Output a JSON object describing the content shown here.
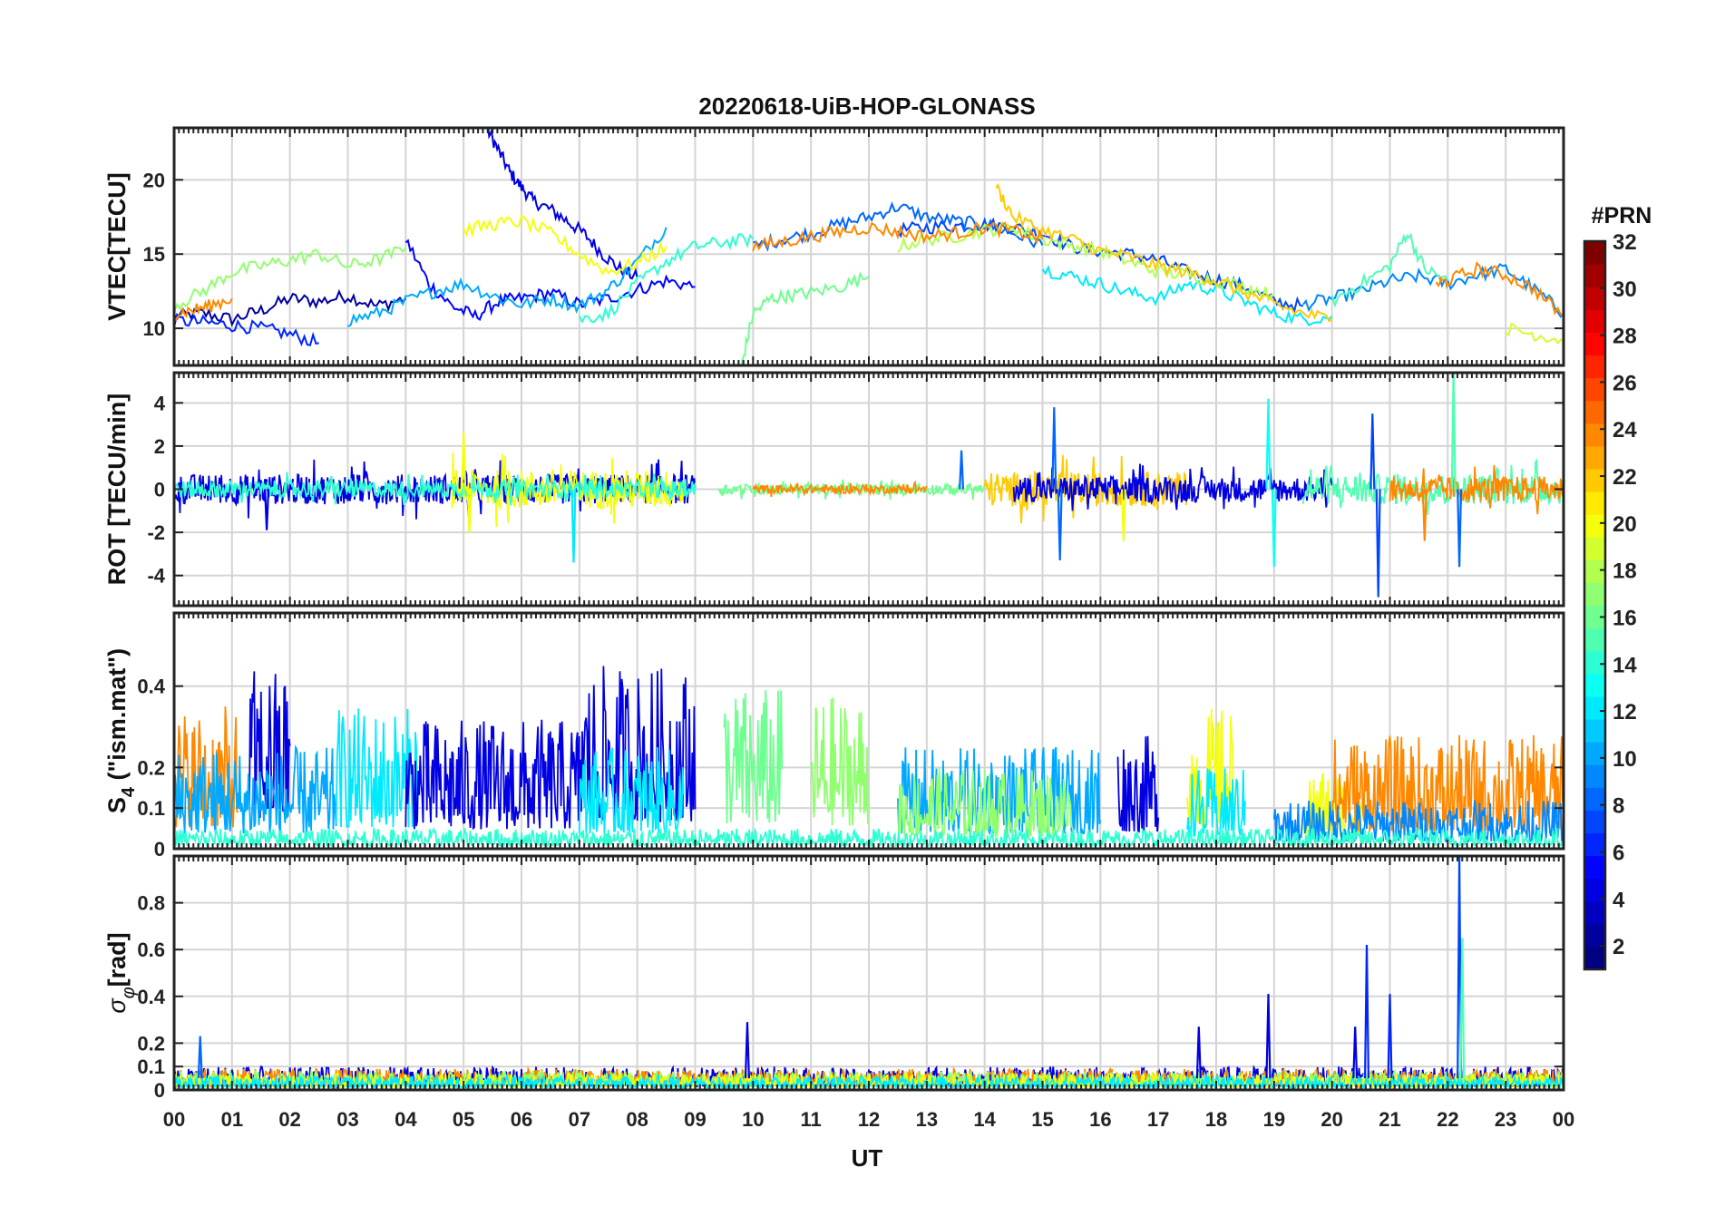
{
  "figure": {
    "title": "20220618-UiB-HOP-GLONASS"
  },
  "chart_data": [
    {
      "type": "line",
      "panel": "vtec",
      "ylabel": "VTEC[TECU]",
      "ylim": [
        7.5,
        23.5
      ],
      "yticks": [
        10,
        15,
        20
      ],
      "xlim": [
        0,
        24
      ],
      "grid": true,
      "series": [
        {
          "prn": 2,
          "x": [
            0,
            0.5,
            1.0,
            1.5,
            2.0,
            2.5,
            3.0,
            3.5,
            4.0
          ],
          "y": [
            10.8,
            11.0,
            10.6,
            11.2,
            12.0,
            11.8,
            12.2,
            11.5,
            12.0
          ]
        },
        {
          "prn": 4,
          "x": [
            5.4,
            5.6,
            5.8,
            6.0,
            6.2,
            6.5,
            6.8,
            7.1,
            7.4,
            7.7,
            8.0
          ],
          "y": [
            23.5,
            22.0,
            20.5,
            19.5,
            18.6,
            18.0,
            17.2,
            16.3,
            15.0,
            14.0,
            13.4
          ]
        },
        {
          "prn": 5,
          "x": [
            4.0,
            4.4,
            4.8,
            5.2,
            5.6,
            6.0,
            6.5,
            7.0,
            7.5,
            8.0,
            8.5,
            9.0
          ],
          "y": [
            16.0,
            13.0,
            11.5,
            10.8,
            11.8,
            12.0,
            12.4,
            11.6,
            12.0,
            12.6,
            13.2,
            12.8
          ]
        },
        {
          "prn": 6,
          "x": [
            0,
            0.5,
            1.0,
            1.5,
            2.0,
            2.5
          ],
          "y": [
            10.5,
            10.4,
            10.2,
            10.0,
            9.6,
            9.0
          ]
        },
        {
          "prn": 7,
          "x": [
            12.5,
            13.0,
            13.5,
            14.0,
            14.5,
            15.0,
            15.5,
            16.0,
            16.5,
            17.0,
            17.5,
            18.0,
            18.5,
            19.0,
            19.5
          ],
          "y": [
            16.6,
            16.8,
            16.9,
            17.0,
            16.8,
            16.4,
            15.5,
            15.2,
            15.0,
            14.6,
            13.8,
            13.3,
            12.8,
            11.8,
            11.5
          ]
        },
        {
          "prn": 8,
          "x": [
            10.0,
            10.5,
            11.0,
            11.5,
            12.0,
            12.5,
            13.0,
            13.5,
            14.0,
            14.5,
            15.0
          ],
          "y": [
            15.5,
            16.0,
            16.4,
            17.0,
            17.5,
            18.2,
            17.5,
            17.2,
            17.0,
            16.4,
            15.6
          ]
        },
        {
          "prn": 9,
          "x": [
            19.5,
            20.0,
            20.5,
            21.0,
            21.5,
            22.0,
            22.5,
            23.0,
            23.5,
            24.0
          ],
          "y": [
            11.6,
            12.0,
            12.5,
            13.2,
            13.5,
            13.0,
            13.6,
            14.0,
            12.6,
            11.0
          ]
        },
        {
          "prn": 10,
          "x": [
            3.0,
            3.5,
            4.0,
            4.5,
            5.0,
            5.5,
            6.0,
            6.5,
            7.0,
            7.5,
            8.0,
            8.5
          ],
          "y": [
            10.5,
            11.0,
            11.8,
            12.5,
            13.0,
            12.2,
            11.6,
            12.0,
            11.5,
            12.6,
            14.5,
            16.8
          ]
        },
        {
          "prn": 12,
          "x": [
            15.0,
            15.5,
            16.0,
            16.5,
            17.0,
            17.5,
            18.0,
            18.5,
            19.0,
            19.5,
            20.0
          ],
          "y": [
            14.0,
            13.5,
            13.0,
            12.4,
            12.0,
            13.0,
            12.6,
            11.8,
            11.0,
            10.6,
            10.8
          ]
        },
        {
          "prn": 14,
          "x": [
            7.0,
            7.5,
            8.0,
            8.5,
            9.0,
            9.5,
            10.0
          ],
          "y": [
            10.6,
            11.0,
            13.0,
            14.5,
            15.5,
            15.8,
            16.0
          ]
        },
        {
          "prn": 15,
          "x": [
            20.0,
            20.5,
            21.0,
            21.3,
            21.6,
            22.0
          ],
          "y": [
            11.8,
            13.0,
            14.2,
            16.5,
            14.0,
            13.2
          ]
        },
        {
          "prn": 16,
          "x": [
            9.8,
            10.0,
            10.3,
            10.6,
            11.0,
            11.5,
            12.0
          ],
          "y": [
            7.5,
            11.0,
            12.0,
            12.2,
            12.4,
            12.8,
            13.5
          ]
        },
        {
          "prn": 17,
          "x": [
            0,
            0.5,
            1.0,
            1.5,
            2.0,
            2.5,
            3.0,
            3.5,
            4.0
          ],
          "y": [
            11.5,
            12.5,
            13.8,
            14.2,
            14.6,
            15.0,
            14.2,
            14.6,
            15.4
          ]
        },
        {
          "prn": 18,
          "x": [
            12.5,
            13.0,
            13.5,
            14.0,
            14.5,
            15.0,
            15.5,
            16.0,
            16.5,
            17.0,
            17.5,
            18.0,
            18.5,
            19.0
          ],
          "y": [
            15.5,
            16.0,
            16.2,
            16.6,
            16.8,
            16.0,
            15.6,
            15.2,
            14.5,
            13.8,
            13.6,
            13.2,
            12.8,
            12.2
          ]
        },
        {
          "prn": 19,
          "x": [
            23.0,
            23.5,
            24.0
          ],
          "y": [
            10.0,
            9.6,
            9.2
          ]
        },
        {
          "prn": 20,
          "x": [
            5.0,
            5.5,
            6.0,
            6.5,
            7.0,
            7.5,
            8.0,
            8.5
          ],
          "y": [
            16.6,
            17.0,
            17.2,
            16.4,
            15.0,
            13.8,
            14.4,
            15.5
          ]
        },
        {
          "prn": 22,
          "x": [
            14.2,
            14.5,
            15.0,
            15.5,
            16.0,
            16.5,
            17.0,
            17.5,
            18.0,
            18.5,
            19.0,
            19.5,
            20.0
          ],
          "y": [
            19.5,
            17.5,
            16.6,
            16.0,
            15.2,
            14.8,
            14.2,
            13.8,
            13.2,
            12.4,
            11.6,
            11.0,
            10.6
          ]
        },
        {
          "prn": 24,
          "x": [
            0,
            0.3,
            0.6,
            1.0
          ],
          "y": [
            11.0,
            11.2,
            11.5,
            12.0
          ]
        },
        {
          "prn": 24,
          "x": [
            10.0,
            10.5,
            11.0,
            11.5,
            12.0,
            12.5,
            13.0,
            13.5,
            14.0,
            14.5,
            15.0
          ],
          "y": [
            15.5,
            15.8,
            16.2,
            16.5,
            16.8,
            16.5,
            16.2,
            16.4,
            16.8,
            16.6,
            16.0
          ]
        },
        {
          "prn": 24,
          "x": [
            21.8,
            22.0,
            22.5,
            23.0,
            23.5,
            24.0
          ],
          "y": [
            13.0,
            13.2,
            14.0,
            13.6,
            12.6,
            10.8
          ]
        }
      ]
    },
    {
      "type": "line",
      "panel": "rot",
      "ylabel": "ROT [TECU/min]",
      "ylim": [
        -5.4,
        5.4
      ],
      "yticks": [
        -4,
        -2,
        0,
        2,
        4
      ],
      "xlim": [
        0,
        24
      ],
      "grid": true,
      "noise_windows": [
        {
          "prn": 4,
          "from": 0.0,
          "to": 9.0,
          "amplitude": 0.7
        },
        {
          "prn": 20,
          "from": 4.8,
          "to": 8.8,
          "amplitude": 0.9
        },
        {
          "prn": 14,
          "from": 0.0,
          "to": 9.0,
          "amplitude": 0.4
        },
        {
          "prn": 16,
          "from": 9.4,
          "to": 14.0,
          "amplitude": 0.25
        },
        {
          "prn": 24,
          "from": 10.0,
          "to": 13.0,
          "amplitude": 0.2
        },
        {
          "prn": 22,
          "from": 14.0,
          "to": 17.5,
          "amplitude": 0.8
        },
        {
          "prn": 4,
          "from": 14.5,
          "to": 20.0,
          "amplitude": 0.6
        },
        {
          "prn": 15,
          "from": 19.5,
          "to": 24.0,
          "amplitude": 0.7
        },
        {
          "prn": 24,
          "from": 21.0,
          "to": 24.0,
          "amplitude": 0.6
        }
      ],
      "spikes": [
        {
          "prn": 4,
          "x": 1.6,
          "y": -1.9
        },
        {
          "prn": 20,
          "x": 5.0,
          "y": 2.6
        },
        {
          "prn": 20,
          "x": 5.1,
          "y": -2.0
        },
        {
          "prn": 12,
          "x": 6.9,
          "y": -3.4
        },
        {
          "prn": 8,
          "x": 13.6,
          "y": 1.8
        },
        {
          "prn": 8,
          "x": 15.2,
          "y": 3.8
        },
        {
          "prn": 8,
          "x": 15.3,
          "y": -3.3
        },
        {
          "prn": 20,
          "x": 16.4,
          "y": -2.4
        },
        {
          "prn": 13,
          "x": 18.9,
          "y": 4.2
        },
        {
          "prn": 13,
          "x": 19.0,
          "y": -3.6
        },
        {
          "prn": 7,
          "x": 20.8,
          "y": -5.0
        },
        {
          "prn": 7,
          "x": 20.7,
          "y": 3.5
        },
        {
          "prn": 15,
          "x": 22.1,
          "y": 5.4
        },
        {
          "prn": 8,
          "x": 22.2,
          "y": -3.6
        },
        {
          "prn": 24,
          "x": 21.6,
          "y": -2.4
        }
      ]
    },
    {
      "type": "line",
      "panel": "s4",
      "ylabel": "S4 (\"ism.mat\")",
      "ylabel_main": "S",
      "ylabel_sub": "4",
      "ylabel_rest": " (\"ism.mat\")",
      "ylim": [
        0,
        0.58
      ],
      "yticks": [
        0,
        0.1,
        0.2,
        0.4
      ],
      "xlim": [
        0,
        24
      ],
      "grid": true,
      "noise_windows": [
        {
          "prn": 24,
          "from": 0.0,
          "to": 1.1,
          "amplitude": 0.35
        },
        {
          "prn": 4,
          "from": 1.3,
          "to": 2.0,
          "amplitude": 0.45
        },
        {
          "prn": 10,
          "from": 0.0,
          "to": 2.8,
          "amplitude": 0.25
        },
        {
          "prn": 12,
          "from": 2.8,
          "to": 4.2,
          "amplitude": 0.35
        },
        {
          "prn": 4,
          "from": 4.0,
          "to": 7.0,
          "amplitude": 0.32
        },
        {
          "prn": 4,
          "from": 7.0,
          "to": 9.0,
          "amplitude": 0.45
        },
        {
          "prn": 12,
          "from": 7.0,
          "to": 8.8,
          "amplitude": 0.25
        },
        {
          "prn": 16,
          "from": 9.5,
          "to": 10.5,
          "amplitude": 0.4
        },
        {
          "prn": 17,
          "from": 11.0,
          "to": 12.0,
          "amplitude": 0.38
        },
        {
          "prn": 10,
          "from": 12.5,
          "to": 16.0,
          "amplitude": 0.25
        },
        {
          "prn": 17,
          "from": 12.5,
          "to": 15.5,
          "amplitude": 0.2
        },
        {
          "prn": 4,
          "from": 16.3,
          "to": 17.0,
          "amplitude": 0.28
        },
        {
          "prn": 20,
          "from": 17.5,
          "to": 18.3,
          "amplitude": 0.35
        },
        {
          "prn": 12,
          "from": 17.5,
          "to": 18.5,
          "amplitude": 0.2
        },
        {
          "prn": 20,
          "from": 19.5,
          "to": 20.5,
          "amplitude": 0.2
        },
        {
          "prn": 24,
          "from": 20.0,
          "to": 24.0,
          "amplitude": 0.28
        },
        {
          "prn": 9,
          "from": 19.0,
          "to": 24.0,
          "amplitude": 0.12
        },
        {
          "prn": 14,
          "from": 0.0,
          "to": 24.0,
          "amplitude": 0.05
        }
      ]
    },
    {
      "type": "line",
      "panel": "sigma",
      "ylabel": "σφ[rad]",
      "ylabel_main": "σ",
      "ylabel_sub": "φ",
      "ylabel_rest": "[rad]",
      "ylim": [
        0,
        1.0
      ],
      "yticks": [
        0,
        0.1,
        0.2,
        0.4,
        0.6,
        0.8
      ],
      "xlim": [
        0,
        24
      ],
      "grid": true,
      "noise_windows": [
        {
          "prn": 4,
          "from": 0.0,
          "to": 24.0,
          "amplitude": 0.1
        },
        {
          "prn": 24,
          "from": 0.0,
          "to": 24.0,
          "amplitude": 0.09
        },
        {
          "prn": 17,
          "from": 0.0,
          "to": 24.0,
          "amplitude": 0.08
        },
        {
          "prn": 20,
          "from": 0.0,
          "to": 24.0,
          "amplitude": 0.07
        },
        {
          "prn": 12,
          "from": 0.0,
          "to": 24.0,
          "amplitude": 0.06
        }
      ],
      "spikes": [
        {
          "prn": 8,
          "x": 0.45,
          "y": 0.23
        },
        {
          "prn": 4,
          "x": 9.9,
          "y": 0.29
        },
        {
          "prn": 4,
          "x": 17.7,
          "y": 0.27
        },
        {
          "prn": 4,
          "x": 18.9,
          "y": 0.41
        },
        {
          "prn": 4,
          "x": 20.4,
          "y": 0.27
        },
        {
          "prn": 6,
          "x": 20.6,
          "y": 0.62
        },
        {
          "prn": 6,
          "x": 21.0,
          "y": 0.41
        },
        {
          "prn": 7,
          "x": 22.2,
          "y": 1.0
        },
        {
          "prn": 15,
          "x": 22.25,
          "y": 0.65
        }
      ]
    }
  ],
  "xaxis": {
    "label": "UT",
    "ticks": [
      "00",
      "01",
      "02",
      "03",
      "04",
      "05",
      "06",
      "07",
      "08",
      "09",
      "10",
      "11",
      "12",
      "13",
      "14",
      "15",
      "16",
      "17",
      "18",
      "19",
      "20",
      "21",
      "22",
      "23",
      "00"
    ]
  },
  "colorbar": {
    "title": "#PRN",
    "colormap": "jet",
    "range": [
      1,
      32
    ],
    "ticks": [
      "2",
      "4",
      "6",
      "8",
      "10",
      "12",
      "14",
      "16",
      "18",
      "20",
      "22",
      "24",
      "26",
      "28",
      "30",
      "32"
    ]
  }
}
